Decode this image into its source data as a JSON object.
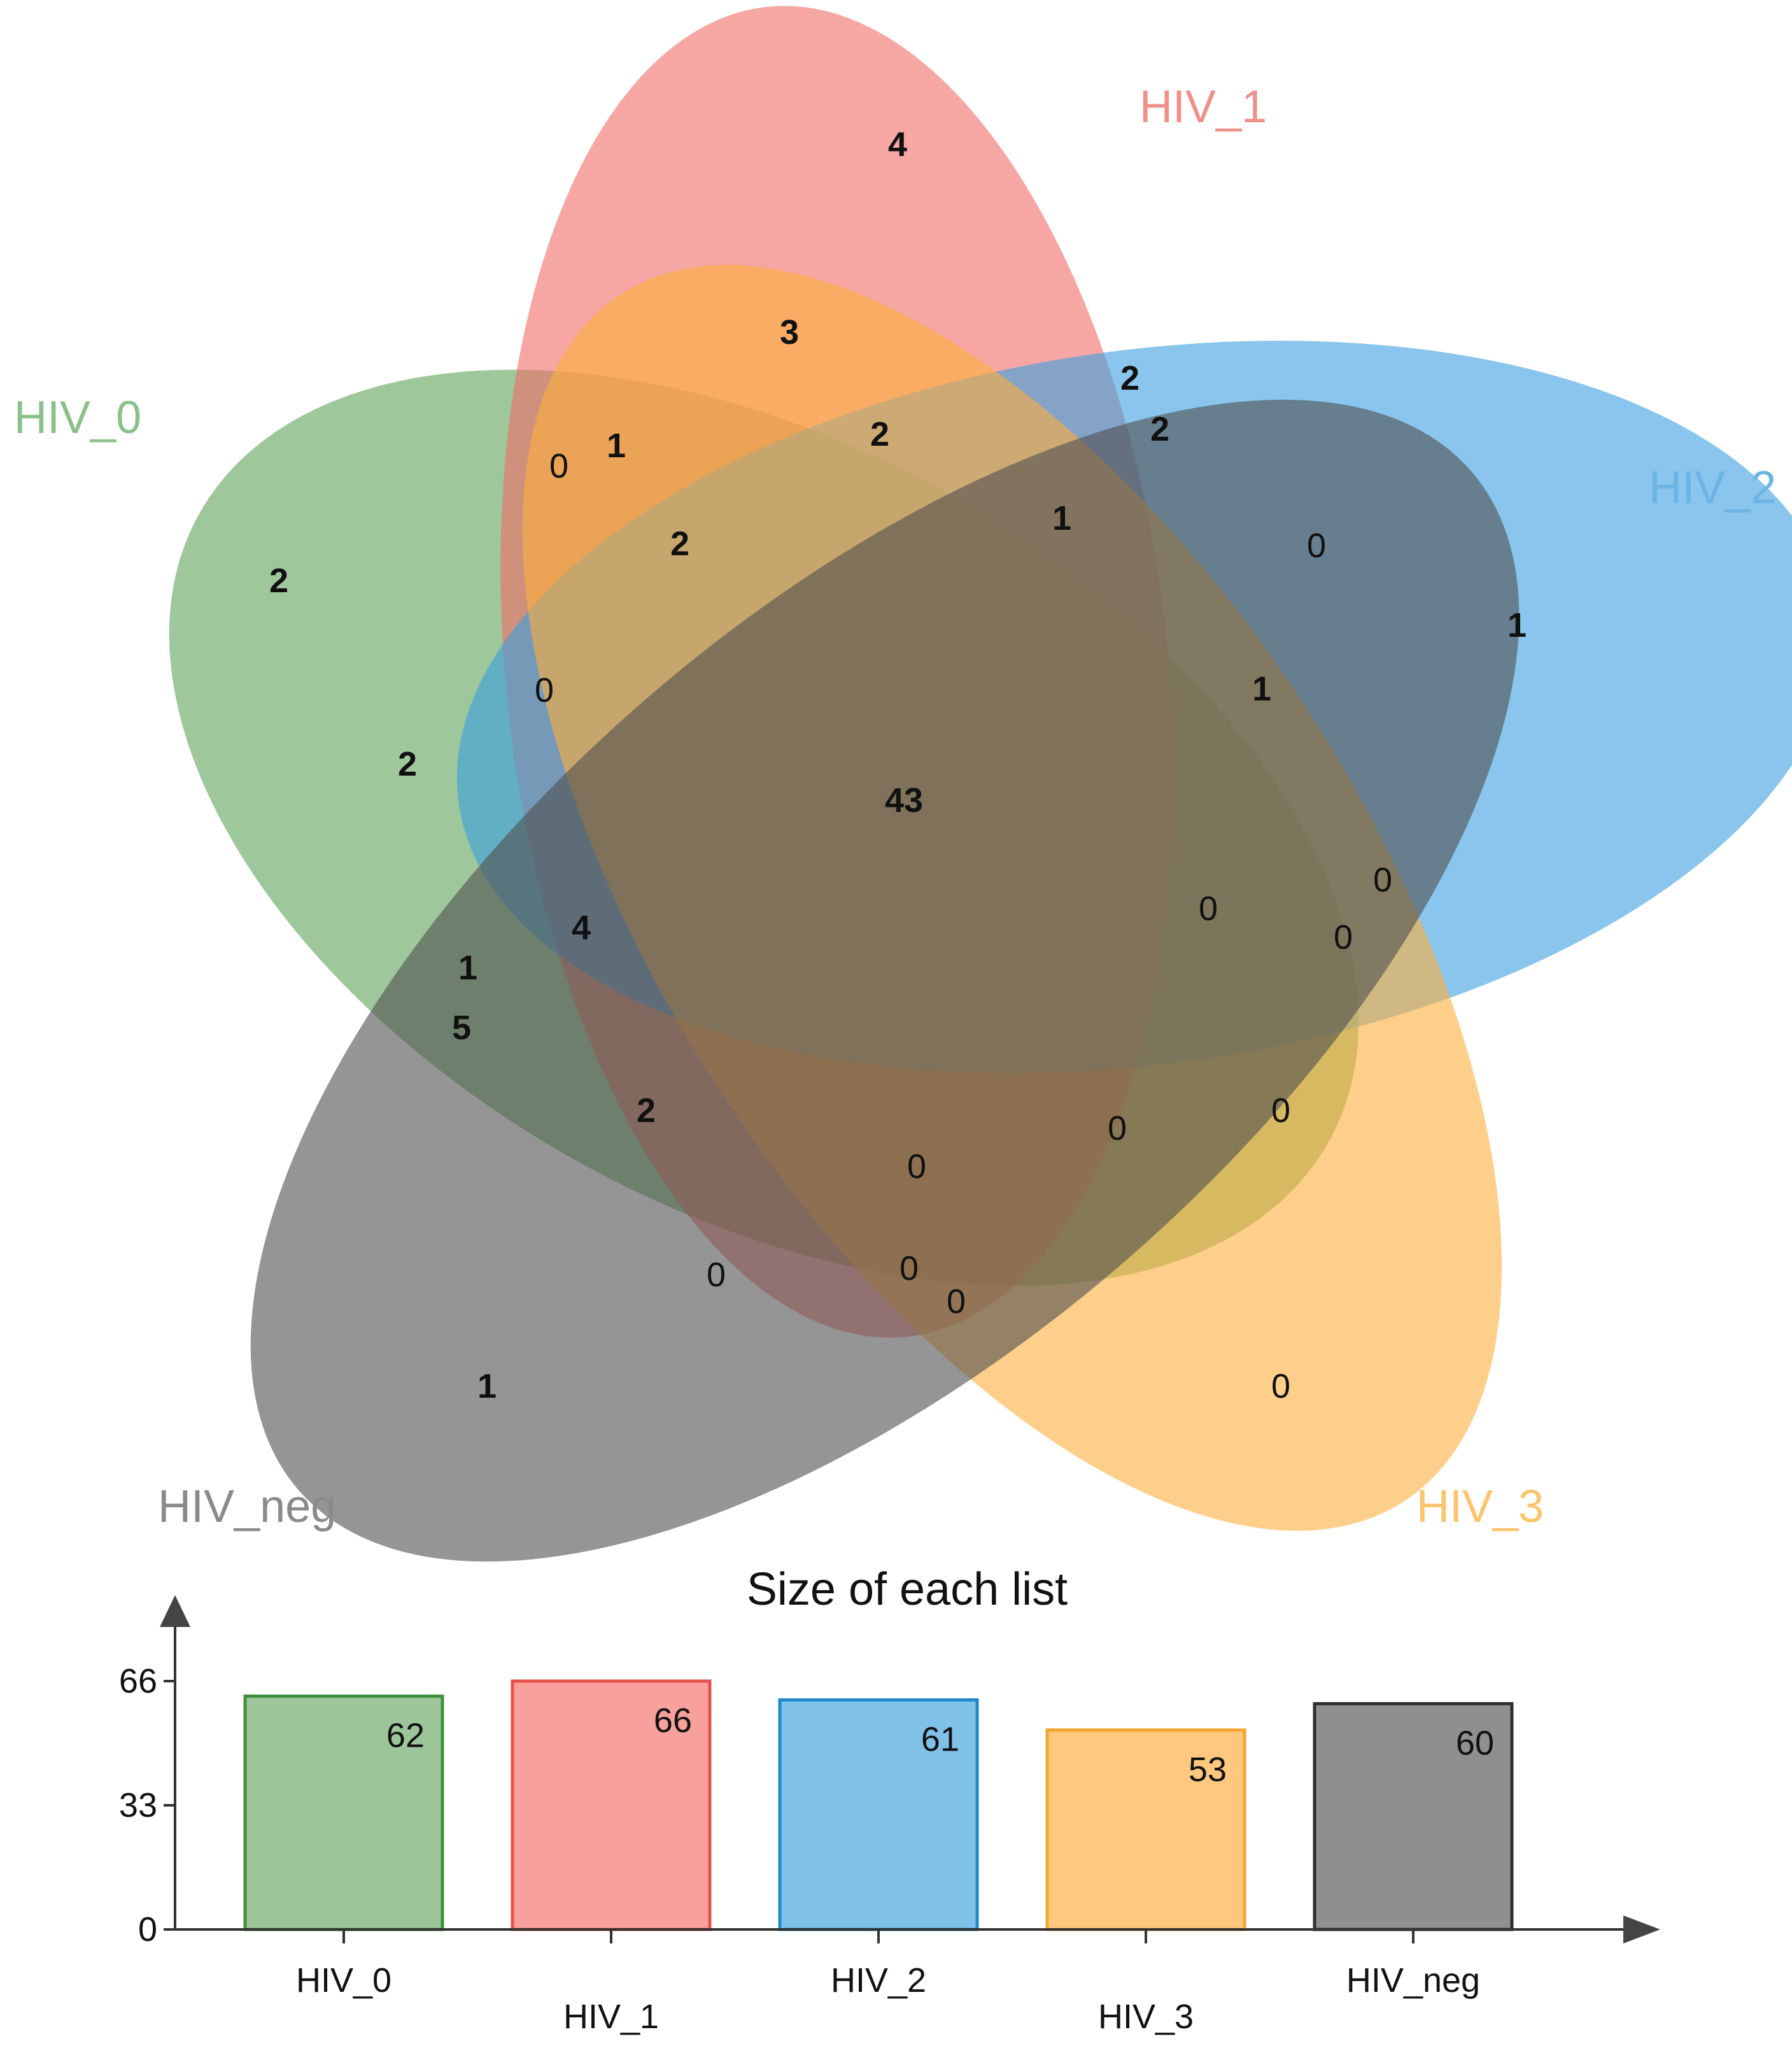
{
  "sets": [
    {
      "id": "HIV_0",
      "label": "HIV_0",
      "fill": "#5fa25a",
      "text_color": "#8cc08a"
    },
    {
      "id": "HIV_1",
      "label": "HIV_1",
      "fill": "#f06d67",
      "text_color": "#f0908b"
    },
    {
      "id": "HIV_2",
      "label": "HIV_2",
      "fill": "#3a9ee0",
      "text_color": "#6cb4e4"
    },
    {
      "id": "HIV_3",
      "label": "HIV_3",
      "fill": "#fdaf3c",
      "text_color": "#fcc46b"
    },
    {
      "id": "HIV_neg",
      "label": "HIV_neg",
      "fill": "#4f4f4f",
      "text_color": "#8a8a8a"
    }
  ],
  "regions": [
    {
      "value": "4",
      "bold": true
    },
    {
      "value": "3",
      "bold": true
    },
    {
      "value": "2",
      "bold": true
    },
    {
      "value": "2",
      "bold": true
    },
    {
      "value": "2",
      "bold": true
    },
    {
      "value": "0",
      "bold": false
    },
    {
      "value": "1",
      "bold": true
    },
    {
      "value": "2",
      "bold": true
    },
    {
      "value": "1",
      "bold": true
    },
    {
      "value": "2",
      "bold": true
    },
    {
      "value": "0",
      "bold": false
    },
    {
      "value": "1",
      "bold": true
    },
    {
      "value": "0",
      "bold": false
    },
    {
      "value": "1",
      "bold": true
    },
    {
      "value": "2",
      "bold": true
    },
    {
      "value": "43",
      "bold": true
    },
    {
      "value": "4",
      "bold": true
    },
    {
      "value": "0",
      "bold": false
    },
    {
      "value": "0",
      "bold": false
    },
    {
      "value": "0",
      "bold": false
    },
    {
      "value": "1",
      "bold": true
    },
    {
      "value": "5",
      "bold": true
    },
    {
      "value": "2",
      "bold": true
    },
    {
      "value": "0",
      "bold": false
    },
    {
      "value": "0",
      "bold": false
    },
    {
      "value": "0",
      "bold": false
    },
    {
      "value": "0",
      "bold": false
    },
    {
      "value": "0",
      "bold": false
    },
    {
      "value": "0",
      "bold": false
    },
    {
      "value": "1",
      "bold": true
    },
    {
      "value": "0",
      "bold": false
    }
  ],
  "chart_data": {
    "type": "bar",
    "title": "Size of each list",
    "categories": [
      "HIV_0",
      "HIV_1",
      "HIV_2",
      "HIV_3",
      "HIV_neg"
    ],
    "values": [
      62,
      66,
      61,
      53,
      60
    ],
    "data_labels": [
      "62",
      "66",
      "61",
      "53",
      "60"
    ],
    "colors": [
      "#9dc59a",
      "#f7a09c",
      "#80c1e8",
      "#fec97f",
      "#8f8f8f"
    ],
    "edge_colors": [
      "#3f8f3c",
      "#e5504a",
      "#1f88cf",
      "#f6a52f",
      "#2f2f2f"
    ],
    "yticks": [
      "0",
      "33",
      "66"
    ],
    "ylim": [
      0,
      66
    ]
  }
}
